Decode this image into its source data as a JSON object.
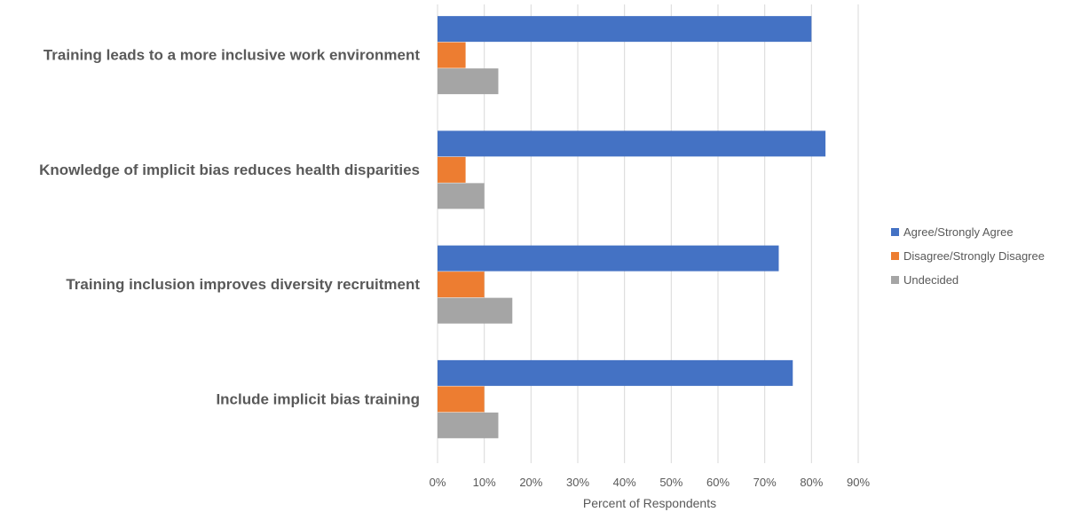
{
  "chart_data": {
    "type": "bar",
    "orientation": "horizontal",
    "title": "",
    "xlabel": "Percent of Respondents",
    "ylabel": "",
    "xlim": [
      0,
      90
    ],
    "xticks": [
      "0%",
      "10%",
      "20%",
      "30%",
      "40%",
      "50%",
      "60%",
      "70%",
      "80%",
      "90%"
    ],
    "grid": "vertical",
    "legend_position": "right",
    "categories": [
      "Training leads to a more inclusive work environment",
      "Knowledge of implicit bias reduces health disparities",
      "Training inclusion improves diversity recruitment",
      "Include implicit bias training"
    ],
    "series": [
      {
        "name": "Agree/Strongly Agree",
        "color": "#4472C4",
        "values": [
          80,
          83,
          73,
          76
        ]
      },
      {
        "name": "Disagree/Strongly Disagree",
        "color": "#ED7D31",
        "values": [
          6,
          6,
          10,
          10
        ]
      },
      {
        "name": "Undecided",
        "color": "#A5A5A5",
        "values": [
          13,
          10,
          16,
          13
        ]
      }
    ]
  }
}
